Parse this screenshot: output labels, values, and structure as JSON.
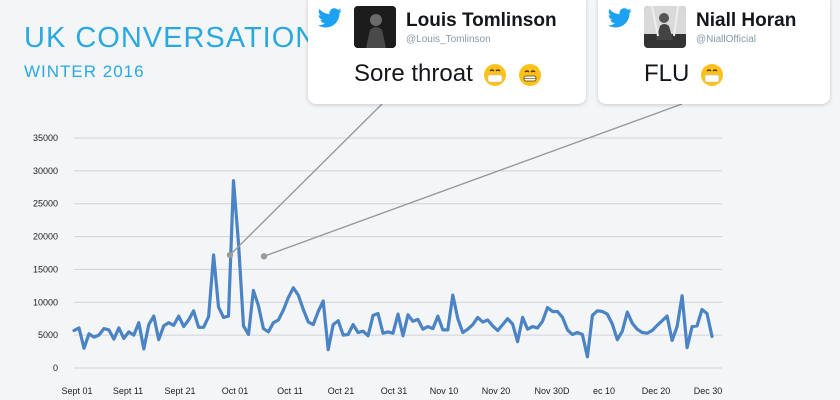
{
  "header": {
    "title": "UK CONVERSATION:",
    "subtitle": "WINTER 2016"
  },
  "tweets": [
    {
      "name": "Louis Tomlinson",
      "handle": "@Louis_Tomlinson",
      "text": "Sore throat",
      "emojis": [
        "mask-face-icon",
        "grinning-face-icon"
      ]
    },
    {
      "name": "Niall Horan",
      "handle": "@NiallOfficial",
      "text": "FLU",
      "emojis": [
        "mask-face-icon"
      ]
    }
  ],
  "colors": {
    "accent": "#2aa9e0",
    "line": "#4a84c4",
    "twitter": "#1da1f2",
    "grid": "#cfd3d8"
  },
  "chart_data": {
    "type": "line",
    "title": "",
    "xlabel": "",
    "ylabel": "",
    "ylim": [
      0,
      35000
    ],
    "y_ticks": [
      0,
      5000,
      10000,
      15000,
      20000,
      25000,
      30000,
      35000
    ],
    "x_ticks": [
      "Sept 01",
      "Sept 11",
      "Sept 21",
      "Oct 01",
      "Oct 11",
      "Oct 21",
      "Oct 31",
      "Nov 10",
      "Nov 20",
      "Nov 30D",
      "ec 10",
      "Dec 20",
      "Dec 30"
    ],
    "grid": true,
    "series": [
      {
        "values": [
          5700,
          6100,
          3000,
          5200,
          4700,
          5000,
          6000,
          5800,
          4400,
          6100,
          4500,
          5500,
          5000,
          6900,
          2900,
          6600,
          7900,
          4300,
          6400,
          6900,
          6500,
          7900,
          6300,
          7300,
          8700,
          6200,
          6200,
          7800,
          17200,
          9300,
          7700,
          7900,
          28500,
          19000,
          6400,
          5100,
          11800,
          9500,
          6000,
          5500,
          6900,
          7300,
          8800,
          10700,
          12200,
          11100,
          8900,
          7000,
          6600,
          8600,
          10200,
          2800,
          6600,
          7200,
          5000,
          5100,
          6600,
          5400,
          5600,
          4900,
          8000,
          8300,
          5300,
          5500,
          5300,
          8200,
          4900,
          8100,
          7100,
          7400,
          5900,
          6300,
          6000,
          7900,
          5800,
          5800,
          11100,
          7500,
          5400,
          5900,
          6600,
          7700,
          7000,
          7300,
          6400,
          5700,
          6600,
          7500,
          6700,
          4000,
          7700,
          5900,
          6300,
          6100,
          7100,
          9200,
          8600,
          8600,
          7700,
          5800,
          5100,
          5400,
          5100,
          1700,
          8000,
          8700,
          8600,
          8200,
          6700,
          4300,
          5600,
          8500,
          6800,
          5900,
          5400,
          5300,
          5700,
          6500,
          7200,
          7900,
          4200,
          6300,
          11000,
          3100,
          6300,
          6400,
          8900,
          8300,
          4800
        ]
      }
    ],
    "annotations": [
      {
        "tweet": "Louis Tomlinson",
        "value": 17200
      },
      {
        "tweet": "Niall Horan",
        "value": 17000
      }
    ]
  }
}
